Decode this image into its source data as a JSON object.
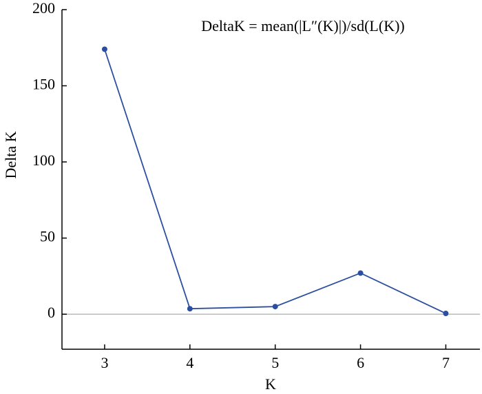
{
  "chart_data": {
    "type": "line",
    "annotation": "DeltaK = mean(|L″(K)|)/sd(L(K))",
    "x_label": "K",
    "y_label": "Delta K",
    "x": [
      3,
      4,
      5,
      6,
      7
    ],
    "series": [
      {
        "color": "#2b4f9e",
        "values": [
          174,
          3.6,
          5,
          27,
          0.5
        ]
      }
    ],
    "xlim": [
      2.5,
      7.4
    ],
    "xticks": [
      3,
      4,
      5,
      6,
      7
    ],
    "ylim": [
      -23,
      200
    ],
    "yticks": [
      0,
      50,
      100,
      150,
      200
    ],
    "zero_line": true
  }
}
